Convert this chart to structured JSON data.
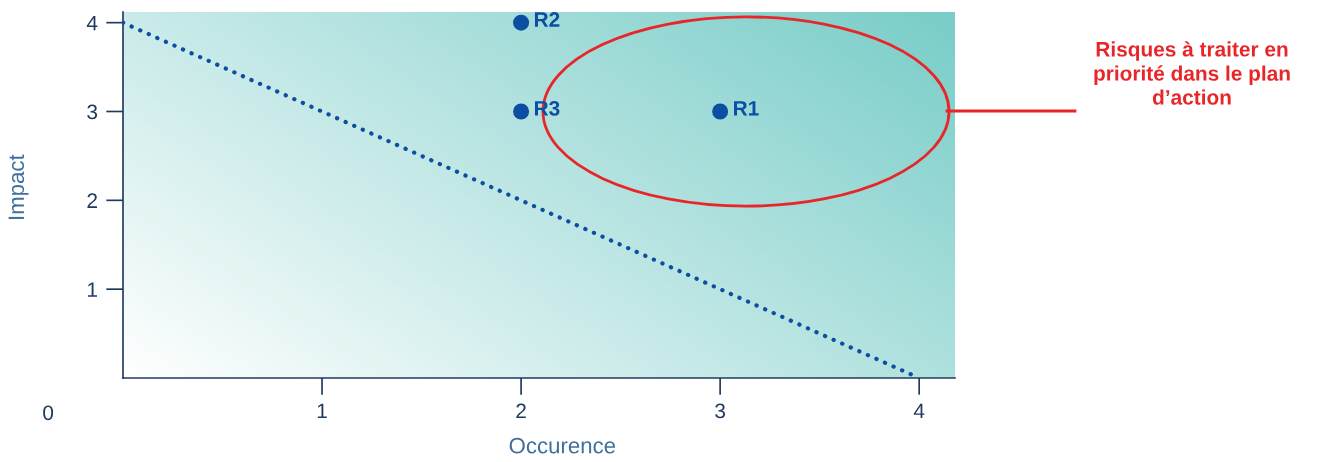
{
  "chart_data": {
    "type": "scatter",
    "xlabel": "Occurence",
    "ylabel": "Impact",
    "xlim": [
      0,
      4.18
    ],
    "ylim": [
      0,
      4.12
    ],
    "xticks": [
      1,
      2,
      3,
      4
    ],
    "yticks": [
      1,
      2,
      3,
      4
    ],
    "grid": false,
    "marker": "circle",
    "series": [
      {
        "color": "#0b4ea2",
        "x": [
          3,
          2,
          2
        ],
        "values": [
          3,
          4,
          3
        ],
        "value_labels": [
          "R1",
          "R2",
          "R3"
        ]
      },
      {
        "type": "line",
        "color": "#0b4ea2",
        "line_style": "dotted",
        "marker": "none",
        "x": [
          0,
          4
        ],
        "values": [
          4,
          0
        ]
      }
    ],
    "annotations": [
      "0",
      "Risques à traiter en\npriorité dans le plan\nd’action"
    ]
  }
}
